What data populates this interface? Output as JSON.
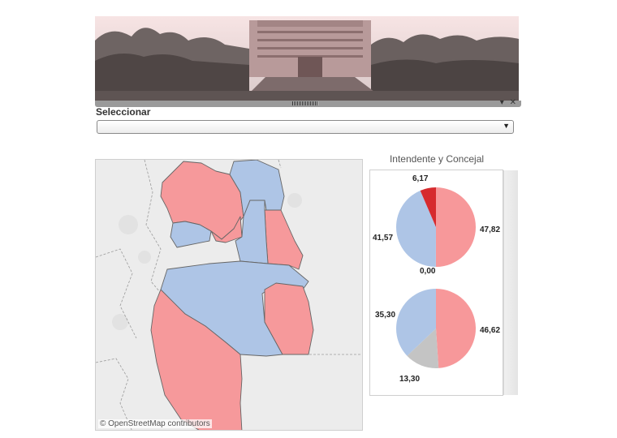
{
  "banner": {
    "image": "municipal-building-photo"
  },
  "banner_tools": {
    "dropdown_icon": "▾",
    "close_icon": "✕"
  },
  "selector": {
    "label": "Seleccionar",
    "value": "",
    "arrow_icon": "▼"
  },
  "map": {
    "attribution": "© OpenStreetMap contributors",
    "colors": {
      "red": "#f6999b",
      "blue": "#aec5e6",
      "background": "#ececec",
      "border": "#666666"
    }
  },
  "pie_section": {
    "title": "Intendente y Concejal"
  },
  "chart_data": [
    {
      "type": "pie",
      "title": "",
      "slices": [
        {
          "value": 47.82,
          "label": "47,82",
          "color": "#f7989a"
        },
        {
          "value": 0.0,
          "label": "0,00",
          "color": "#c4c4c4"
        },
        {
          "value": 41.57,
          "label": "41,57",
          "color": "#aec5e6"
        },
        {
          "value": 6.17,
          "label": "6,17",
          "color": "#d62a2e"
        }
      ]
    },
    {
      "type": "pie",
      "title": "",
      "slices": [
        {
          "value": 46.62,
          "label": "46,62",
          "color": "#f7989a"
        },
        {
          "value": 13.3,
          "label": "13,30",
          "color": "#c4c4c4"
        },
        {
          "value": 35.3,
          "label": "35,30",
          "color": "#aec5e6"
        }
      ]
    }
  ]
}
